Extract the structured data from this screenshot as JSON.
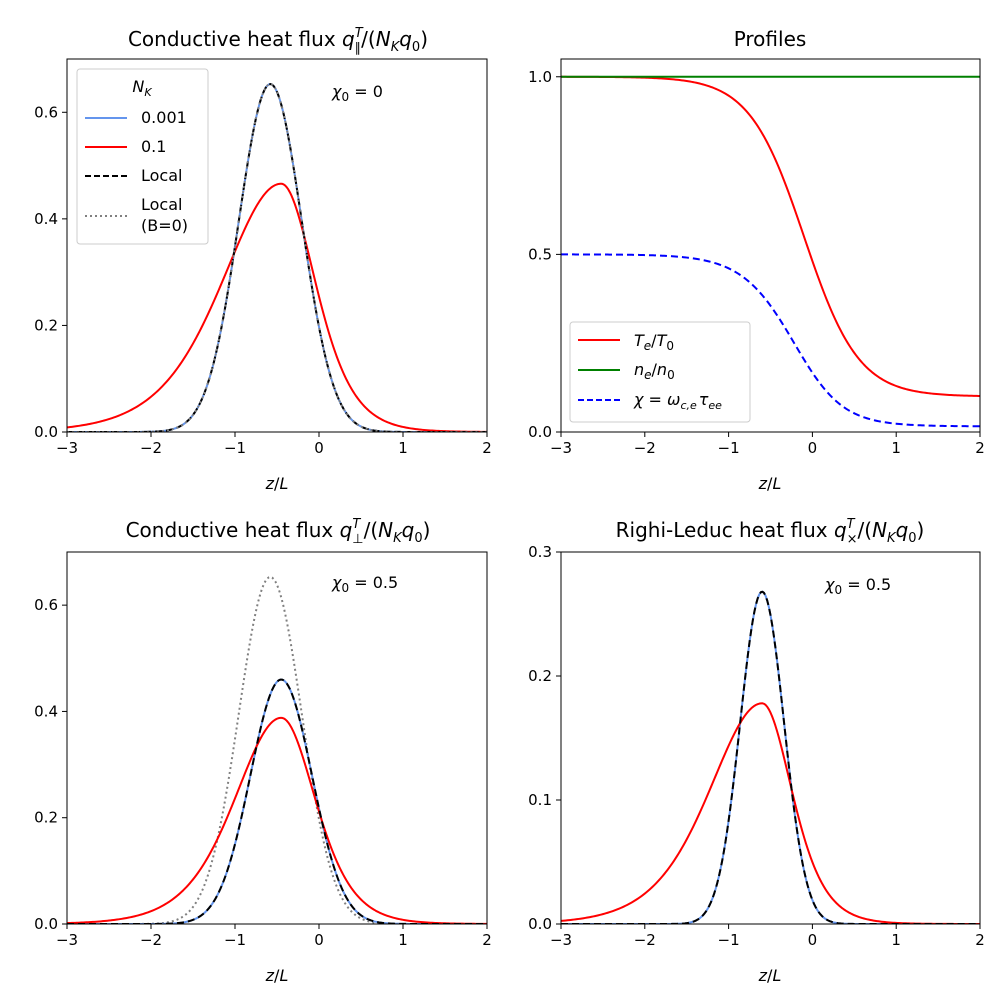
{
  "chart_data": [
    {
      "type": "line",
      "panel": "top-left",
      "title": "Conductive heat flux q∥ᵀ/(N_K q₀)",
      "title_parts": {
        "pre": "Conductive heat flux ",
        "q": "q",
        "sub": "∥",
        "sup": "T",
        "mid": "/(",
        "n": "N",
        "nsub": "K",
        "q0": "q",
        "q0sub": "0",
        "post": ")"
      },
      "xlabel": "z/L",
      "xlabel_parts": {
        "z": "z",
        "slash": "/",
        "L": "L"
      },
      "ylabel": "",
      "xlim": [
        -3,
        2
      ],
      "ylim": [
        0,
        0.7
      ],
      "xticks": [
        -3,
        -2,
        -1,
        0,
        1,
        2
      ],
      "xtick_labels": [
        "−3",
        "−2",
        "−1",
        "0",
        "1",
        "2"
      ],
      "yticks": [
        0.0,
        0.2,
        0.4,
        0.6
      ],
      "ytick_labels": [
        "0.0",
        "0.2",
        "0.4",
        "0.6"
      ],
      "annotation": "χ₀ = 0",
      "annotation_parts": {
        "sym": "χ",
        "sub": "0",
        "eq": " = 0"
      },
      "legend_position": "top-left",
      "legend": {
        "title": "N_K",
        "title_parts": {
          "n": "N",
          "sub": "K"
        },
        "entries": [
          "0.001",
          "0.1",
          "Local",
          "Local (B=0)"
        ],
        "entry_lines": [
          [
            "0.001"
          ],
          [
            "0.1"
          ],
          [
            "Local"
          ],
          [
            "Local",
            "(B=0)"
          ]
        ]
      },
      "series": [
        {
          "name": "0.001",
          "color": "#6495ed",
          "dash": "solid",
          "curve": {
            "kind": "gauss",
            "amp": 0.653,
            "center": -0.58,
            "width": 0.53
          }
        },
        {
          "name": "0.1",
          "color": "#ff0000",
          "dash": "solid",
          "curve": {
            "kind": "skew",
            "amp": 0.466,
            "center": -0.45,
            "wl": 0.95,
            "wr": 0.55,
            "tail": 0.0
          }
        },
        {
          "name": "Local",
          "color": "#000000",
          "dash": "dashed",
          "curve": {
            "kind": "gauss",
            "amp": 0.653,
            "center": -0.58,
            "width": 0.53
          }
        },
        {
          "name": "Local (B=0)",
          "color": "#808080",
          "dash": "dotted",
          "curve": {
            "kind": "gauss",
            "amp": 0.653,
            "center": -0.58,
            "width": 0.53
          }
        }
      ]
    },
    {
      "type": "line",
      "panel": "top-right",
      "title": "Profiles",
      "xlabel": "z/L",
      "xlabel_parts": {
        "z": "z",
        "slash": "/",
        "L": "L"
      },
      "ylabel": "",
      "xlim": [
        -3,
        2
      ],
      "ylim": [
        0,
        1.05
      ],
      "xticks": [
        -3,
        -2,
        -1,
        0,
        1,
        2
      ],
      "xtick_labels": [
        "−3",
        "−2",
        "−1",
        "0",
        "1",
        "2"
      ],
      "yticks": [
        0.0,
        0.5,
        1.0
      ],
      "ytick_labels": [
        "0.0",
        "0.5",
        "1.0"
      ],
      "legend_position": "lower-left",
      "legend": {
        "entries": [
          "T_e/T_0",
          "n_e/n_0",
          "χ = ω_{c,e} τ_ee"
        ],
        "entry_parts": [
          {
            "a": "T",
            "as": "e",
            "b": "T",
            "bs": "0"
          },
          {
            "a": "n",
            "as": "e",
            "b": "n",
            "bs": "0"
          },
          {
            "chi": "χ",
            "eq": " = ",
            "om": "ω",
            "oms": "c,e",
            "tau": "τ",
            "taus": "ee"
          }
        ]
      },
      "series": [
        {
          "name": "T_e/T_0",
          "color": "#ff0000",
          "dash": "solid",
          "curve": {
            "kind": "tanh",
            "low": 0.1,
            "high": 1.0,
            "center": -0.1,
            "width": 0.65
          }
        },
        {
          "name": "n_e/n_0",
          "color": "#008000",
          "dash": "solid",
          "curve": {
            "kind": "const",
            "value": 1.0
          }
        },
        {
          "name": "χ = ω_{c,e} τ_ee",
          "color": "#0000ff",
          "dash": "dashed",
          "curve": {
            "kind": "chi",
            "coef": 0.5,
            "power": 1.5,
            "low": 0.1,
            "high": 1.0,
            "center": -0.1,
            "width": 0.65
          }
        }
      ]
    },
    {
      "type": "line",
      "panel": "bottom-left",
      "title": "Conductive heat flux q⊥ᵀ/(N_K q₀)",
      "title_parts": {
        "pre": "Conductive heat flux ",
        "q": "q",
        "sub": "⊥",
        "sup": "T",
        "mid": "/(",
        "n": "N",
        "nsub": "K",
        "q0": "q",
        "q0sub": "0",
        "post": ")"
      },
      "xlabel": "z/L",
      "xlabel_parts": {
        "z": "z",
        "slash": "/",
        "L": "L"
      },
      "ylabel": "",
      "xlim": [
        -3,
        2
      ],
      "ylim": [
        0,
        0.7
      ],
      "xticks": [
        -3,
        -2,
        -1,
        0,
        1,
        2
      ],
      "xtick_labels": [
        "−3",
        "−2",
        "−1",
        "0",
        "1",
        "2"
      ],
      "yticks": [
        0.0,
        0.2,
        0.4,
        0.6
      ],
      "ytick_labels": [
        "0.0",
        "0.2",
        "0.4",
        "0.6"
      ],
      "annotation": "χ₀ = 0.5",
      "annotation_parts": {
        "sym": "χ",
        "sub": "0",
        "eq": " = 0.5"
      },
      "series": [
        {
          "name": "Local (B=0)",
          "color": "#808080",
          "dash": "dotted",
          "curve": {
            "kind": "gauss",
            "amp": 0.653,
            "center": -0.58,
            "width": 0.53
          }
        },
        {
          "name": "0.001",
          "color": "#6495ed",
          "dash": "solid",
          "curve": {
            "kind": "gauss",
            "amp": 0.46,
            "center": -0.45,
            "width": 0.52
          }
        },
        {
          "name": "0.1",
          "color": "#ff0000",
          "dash": "solid",
          "curve": {
            "kind": "skew",
            "amp": 0.388,
            "center": -0.45,
            "wl": 0.75,
            "wr": 0.55,
            "tail": 0.0
          }
        },
        {
          "name": "Local",
          "color": "#000000",
          "dash": "dashed",
          "curve": {
            "kind": "gauss",
            "amp": 0.46,
            "center": -0.45,
            "width": 0.52
          }
        }
      ]
    },
    {
      "type": "line",
      "panel": "bottom-right",
      "title": "Righi-Leduc heat flux q×ᵀ/(N_K q₀)",
      "title_parts": {
        "pre": "Righi-Leduc heat flux ",
        "q": "q",
        "sub": "×",
        "sup": "T",
        "mid": "/(",
        "n": "N",
        "nsub": "K",
        "q0": "q",
        "q0sub": "0",
        "post": ")"
      },
      "xlabel": "z/L",
      "xlabel_parts": {
        "z": "z",
        "slash": "/",
        "L": "L"
      },
      "ylabel": "",
      "xlim": [
        -3,
        2
      ],
      "ylim": [
        0,
        0.3
      ],
      "xticks": [
        -3,
        -2,
        -1,
        0,
        1,
        2
      ],
      "xtick_labels": [
        "−3",
        "−2",
        "−1",
        "0",
        "1",
        "2"
      ],
      "yticks": [
        0.0,
        0.1,
        0.2,
        0.3
      ],
      "ytick_labels": [
        "0.0",
        "0.1",
        "0.2",
        "0.3"
      ],
      "annotation": "χ₀ = 0.5",
      "annotation_parts": {
        "sym": "χ",
        "sub": "0",
        "eq": " = 0.5"
      },
      "series": [
        {
          "name": "0.001",
          "color": "#6495ed",
          "dash": "solid",
          "curve": {
            "kind": "gauss",
            "amp": 0.268,
            "center": -0.6,
            "width": 0.37
          }
        },
        {
          "name": "0.1",
          "color": "#ff0000",
          "dash": "solid",
          "curve": {
            "kind": "skew",
            "amp": 0.178,
            "center": -0.6,
            "wl": 0.85,
            "wr": 0.48,
            "tail": 0.0
          }
        },
        {
          "name": "Local",
          "color": "#000000",
          "dash": "dashed",
          "curve": {
            "kind": "gauss",
            "amp": 0.268,
            "center": -0.6,
            "width": 0.37
          }
        }
      ]
    }
  ]
}
